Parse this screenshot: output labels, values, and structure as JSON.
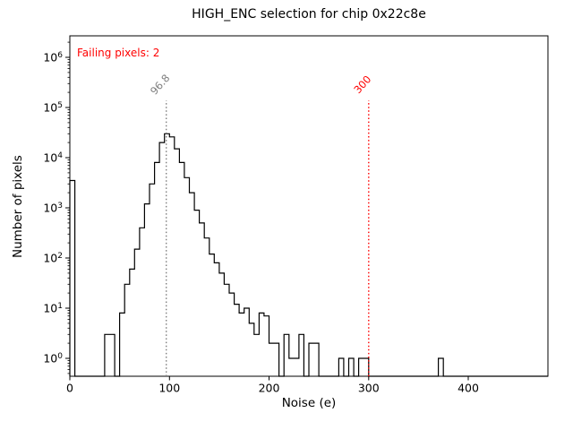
{
  "title": "HIGH_ENC selection for chip 0x22c8e",
  "annotation": {
    "text": "Failing pixels: 2",
    "color": "#ff0000"
  },
  "thresholds": [
    {
      "label": "96.8",
      "value": 96.8,
      "color": "#7f7f7f"
    },
    {
      "label": "300",
      "value": 300,
      "color": "#ff0000"
    }
  ],
  "chart_data": {
    "type": "bar",
    "subtype": "step-histogram",
    "title": "HIGH_ENC selection for chip 0x22c8e",
    "xlabel": "Noise (e)",
    "ylabel": "Number of pixels",
    "xlim": [
      0,
      480
    ],
    "ylim": [
      0.4,
      2700000
    ],
    "yscale": "log",
    "grid": false,
    "legend": "none",
    "line_color": "#000000",
    "bin_start": 0,
    "bin_width": 5,
    "counts": [
      3500,
      0,
      0,
      0,
      0,
      0,
      0,
      3,
      3,
      0,
      8,
      30,
      60,
      150,
      400,
      1200,
      3000,
      8000,
      20000,
      30000,
      26000,
      15000,
      8000,
      4000,
      2000,
      900,
      500,
      250,
      120,
      80,
      50,
      30,
      20,
      12,
      8,
      10,
      5,
      3,
      8,
      7,
      2,
      2,
      0,
      3,
      1,
      1,
      3,
      0,
      2,
      2,
      0,
      0,
      0,
      0,
      1,
      0,
      1,
      0,
      1,
      1,
      0,
      0,
      0,
      0,
      0,
      0,
      0,
      0,
      0,
      0,
      0,
      0,
      0,
      0,
      1,
      0,
      0,
      0,
      0,
      0,
      0,
      0,
      0,
      0,
      0,
      0,
      0,
      0,
      0,
      0,
      0,
      0,
      0,
      0,
      0,
      0
    ],
    "xticks": [
      0,
      100,
      200,
      300,
      400
    ],
    "ytick_exponents": [
      0,
      1,
      2,
      3,
      4,
      5,
      6
    ]
  }
}
